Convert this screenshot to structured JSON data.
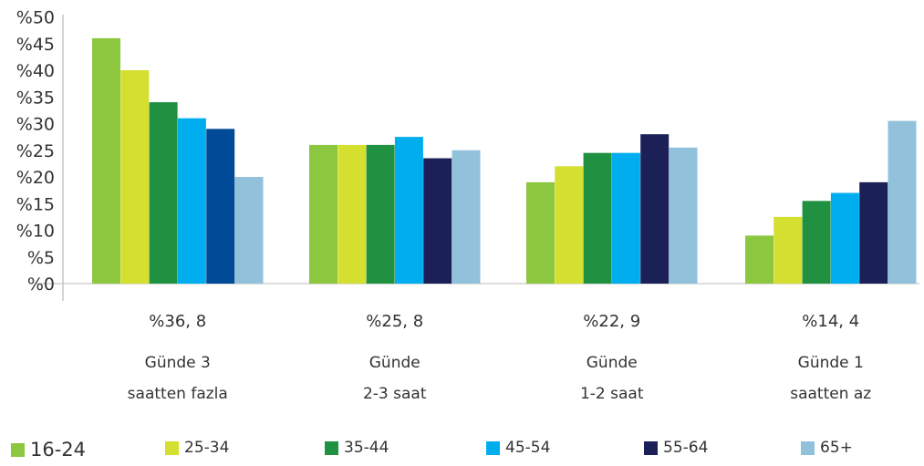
{
  "chart_data": {
    "type": "bar",
    "title": "",
    "xlabel": "",
    "ylabel": "",
    "ylim": [
      0,
      50
    ],
    "yticks": [
      "%0",
      "%5",
      "%10",
      "%15",
      "%20",
      "%25",
      "%30",
      "%35",
      "%40",
      "%45",
      "%50"
    ],
    "grid": false,
    "legend_position": "bottom",
    "categories": [
      {
        "total": "%36, 8",
        "label_lines": [
          "Günde 3",
          "saatten fazla"
        ]
      },
      {
        "total": "%25, 8",
        "label_lines": [
          "Günde",
          "2-3 saat"
        ]
      },
      {
        "total": "%22, 9",
        "label_lines": [
          "Günde",
          "1-2 saat"
        ]
      },
      {
        "total": "%14, 4",
        "label_lines": [
          "Günde 1",
          "saatten az"
        ]
      }
    ],
    "series": [
      {
        "name": "16-24",
        "color": "#8dc63f",
        "values": [
          46,
          26,
          19,
          9
        ]
      },
      {
        "name": "25-34",
        "color": "#d4df2f",
        "values": [
          40,
          26,
          22,
          12.5
        ]
      },
      {
        "name": "35-44",
        "color": "#1f9140",
        "values": [
          34,
          26,
          24.5,
          15.5
        ]
      },
      {
        "name": "45-54",
        "color": "#00aeef",
        "values": [
          31,
          27.5,
          24.5,
          17
        ]
      },
      {
        "name": "55-64",
        "color": "#1b2056",
        "bar_colors": [
          "#004a97",
          "#1b2056",
          "#1b2056",
          "#1b2056"
        ],
        "values": [
          29,
          23.5,
          28,
          19
        ]
      },
      {
        "name": "65+",
        "color": "#91c1db",
        "values": [
          20,
          25,
          25.5,
          30.5
        ]
      }
    ]
  }
}
